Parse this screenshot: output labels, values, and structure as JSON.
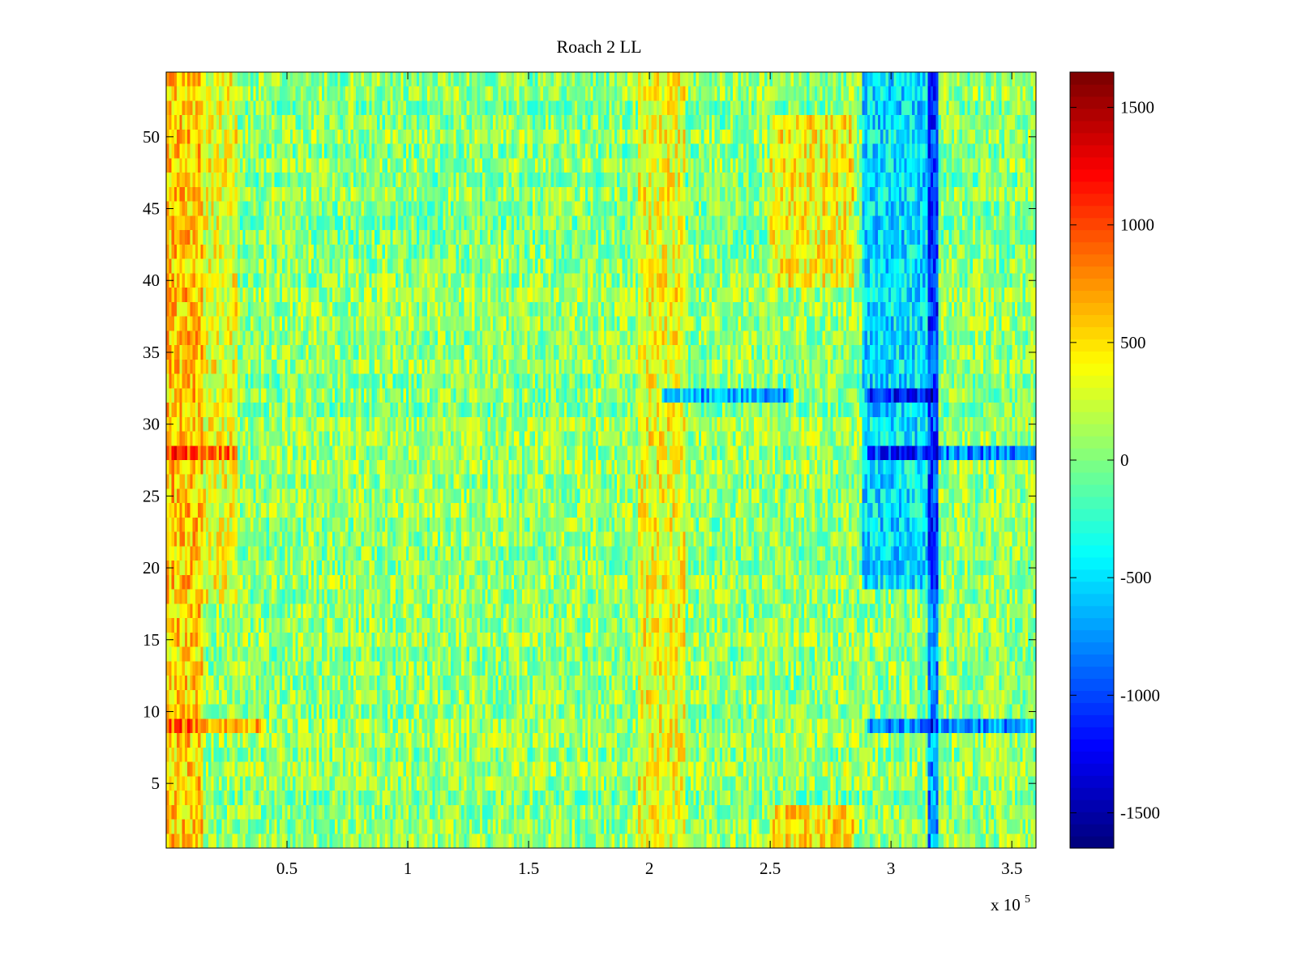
{
  "chart_data": {
    "type": "heatmap",
    "title": "Roach 2 LL",
    "xlabel": "",
    "ylabel": "",
    "x_range": [
      0,
      360000
    ],
    "y_range": [
      0.5,
      54.5
    ],
    "x_scale_label": "x 10",
    "x_scale_exponent": "5",
    "x_ticks": [
      {
        "value": 50000,
        "label": "0.5"
      },
      {
        "value": 100000,
        "label": "1"
      },
      {
        "value": 150000,
        "label": "1.5"
      },
      {
        "value": 200000,
        "label": "2"
      },
      {
        "value": 250000,
        "label": "2.5"
      },
      {
        "value": 300000,
        "label": "3"
      },
      {
        "value": 350000,
        "label": "3.5"
      }
    ],
    "y_ticks": [
      {
        "value": 5,
        "label": "5"
      },
      {
        "value": 10,
        "label": "10"
      },
      {
        "value": 15,
        "label": "15"
      },
      {
        "value": 20,
        "label": "20"
      },
      {
        "value": 25,
        "label": "25"
      },
      {
        "value": 30,
        "label": "30"
      },
      {
        "value": 35,
        "label": "35"
      },
      {
        "value": 40,
        "label": "40"
      },
      {
        "value": 45,
        "label": "45"
      },
      {
        "value": 50,
        "label": "50"
      }
    ],
    "colorbar": {
      "colormap": "jet",
      "range": [
        -1650,
        1650
      ],
      "ticks": [
        {
          "value": 1500,
          "label": "1500"
        },
        {
          "value": 1000,
          "label": "1000"
        },
        {
          "value": 500,
          "label": "500"
        },
        {
          "value": 0,
          "label": "0"
        },
        {
          "value": -500,
          "label": "-500"
        },
        {
          "value": -1000,
          "label": "-1000"
        },
        {
          "value": -1500,
          "label": "-1500"
        }
      ]
    },
    "rows": 54,
    "columns_time_range": [
      0,
      360000
    ],
    "approx_pattern": {
      "baseline": 50,
      "regions": [
        {
          "x": [
            0,
            15000
          ],
          "rows": [
            1,
            54
          ],
          "value": 650
        },
        {
          "x": [
            0,
            30000
          ],
          "rows": [
            18,
            54
          ],
          "value": 400
        },
        {
          "x": [
            195000,
            215000
          ],
          "rows": [
            1,
            54
          ],
          "value": 420
        },
        {
          "x": [
            250000,
            285000
          ],
          "rows": [
            40,
            51
          ],
          "value": 500
        },
        {
          "x": [
            250000,
            285000
          ],
          "rows": [
            1,
            3
          ],
          "value": 550
        },
        {
          "x": [
            288000,
            320000
          ],
          "rows": [
            19,
            54
          ],
          "value": -650
        },
        {
          "x": [
            315000,
            320000
          ],
          "rows": [
            1,
            54
          ],
          "value": -1000
        },
        {
          "x": [
            205000,
            260000
          ],
          "rows": [
            32,
            32
          ],
          "value": -900
        },
        {
          "x": [
            290000,
            320000
          ],
          "rows": [
            32,
            32
          ],
          "value": -1200
        },
        {
          "x": [
            0,
            30000
          ],
          "rows": [
            28,
            28
          ],
          "value": 900
        },
        {
          "x": [
            290000,
            360000
          ],
          "rows": [
            28,
            28
          ],
          "value": -1100
        },
        {
          "x": [
            0,
            40000
          ],
          "rows": [
            9,
            9
          ],
          "value": 800
        },
        {
          "x": [
            290000,
            360000
          ],
          "rows": [
            9,
            9
          ],
          "value": -1000
        }
      ]
    }
  }
}
